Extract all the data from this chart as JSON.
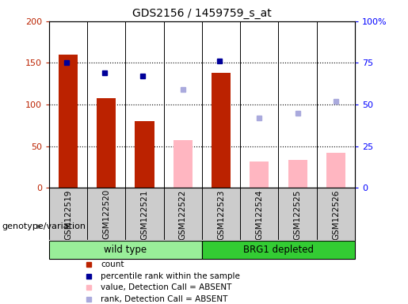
{
  "title": "GDS2156 / 1459759_s_at",
  "samples": [
    "GSM122519",
    "GSM122520",
    "GSM122521",
    "GSM122522",
    "GSM122523",
    "GSM122524",
    "GSM122525",
    "GSM122526"
  ],
  "count_values": [
    160,
    108,
    80,
    null,
    138,
    null,
    null,
    null
  ],
  "percentile_rank_values": [
    75,
    69,
    67,
    null,
    76,
    null,
    null,
    null
  ],
  "absent_value_values": [
    null,
    null,
    null,
    57,
    null,
    32,
    34,
    42
  ],
  "absent_rank_values": [
    null,
    null,
    null,
    59,
    null,
    42,
    45,
    52
  ],
  "ylim_left": [
    0,
    200
  ],
  "ylim_right": [
    0,
    100
  ],
  "yticks_left": [
    0,
    50,
    100,
    150,
    200
  ],
  "yticks_right": [
    0,
    25,
    50,
    75,
    100
  ],
  "ytick_labels_left": [
    "0",
    "50",
    "100",
    "150",
    "200"
  ],
  "ytick_labels_right": [
    "0",
    "25",
    "50",
    "75",
    "100%"
  ],
  "bar_width": 0.5,
  "count_color": "#BB2200",
  "percentile_rank_color": "#000099",
  "absent_value_color": "#FFB6C1",
  "absent_rank_color": "#AAAADD",
  "grid_color": "black",
  "legend_items": [
    {
      "label": "count",
      "color": "#BB2200"
    },
    {
      "label": "percentile rank within the sample",
      "color": "#000099"
    },
    {
      "label": "value, Detection Call = ABSENT",
      "color": "#FFB6C1"
    },
    {
      "label": "rank, Detection Call = ABSENT",
      "color": "#AAAADD"
    }
  ],
  "xlabel_genotype": "genotype/variation",
  "xtick_bg_color": "#CCCCCC",
  "wt_color": "#99EE99",
  "brg_color": "#33CC33",
  "group_border_color": "#000000"
}
